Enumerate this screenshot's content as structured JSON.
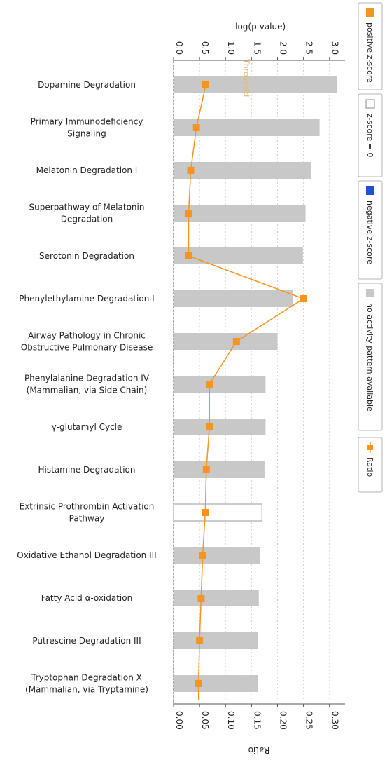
{
  "chart_data": {
    "type": "bar",
    "orientation": "horizontal",
    "top_axis": {
      "label": "-log(p-value)",
      "ticks": [
        "0.0",
        "0.5",
        "1.0",
        "1.5",
        "2.0",
        "2.5",
        "3.0"
      ],
      "range": [
        0,
        3.3
      ]
    },
    "bottom_axis": {
      "label": "Ratio",
      "ticks": [
        "0.00",
        "0.05",
        "0.10",
        "0.15",
        "0.20",
        "0.25",
        "0.30"
      ],
      "range": [
        0,
        0.33
      ]
    },
    "threshold": {
      "label": "Threshold",
      "value": 1.3
    },
    "categories": [
      [
        "Dopamine Degradation"
      ],
      [
        "Primary Immunodeficiency",
        "Signaling"
      ],
      [
        "Melatonin Degradation I"
      ],
      [
        "Superpathway of Melatonin",
        "Degradation"
      ],
      [
        "Serotonin Degradation"
      ],
      [
        "Phenylethylamine Degradation I"
      ],
      [
        "Airway Pathology in Chronic",
        "Obstructive Pulmonary Disease"
      ],
      [
        "Phenylalanine Degradation IV",
        "(Mammalian, via Side Chain)"
      ],
      [
        "γ-glutamyl Cycle"
      ],
      [
        "Histamine Degradation"
      ],
      [
        "Extrinsic Prothrombin Activation",
        "Pathway"
      ],
      [
        "Oxidative Ethanol Degradation III"
      ],
      [
        "Fatty Acid α-oxidation"
      ],
      [
        "Putrescine Degradation III"
      ],
      [
        "Tryptophan Degradation X",
        "(Mammalian, via Tryptamine)"
      ]
    ],
    "series": [
      {
        "name": "-log(p-value)",
        "values": [
          3.15,
          2.81,
          2.64,
          2.54,
          2.49,
          2.29,
          2.0,
          1.77,
          1.77,
          1.75,
          1.7,
          1.66,
          1.64,
          1.62,
          1.62
        ],
        "fill": [
          "gray",
          "gray",
          "gray",
          "gray",
          "gray",
          "gray",
          "gray",
          "gray",
          "gray",
          "gray",
          "white",
          "gray",
          "gray",
          "gray",
          "gray"
        ]
      },
      {
        "name": "Ratio",
        "values": [
          0.062,
          0.044,
          0.033,
          0.029,
          0.029,
          0.25,
          0.121,
          0.069,
          0.069,
          0.063,
          0.061,
          0.056,
          0.053,
          0.05,
          0.048
        ]
      }
    ],
    "legend": {
      "placement": "right",
      "items": [
        {
          "label": "positive z-score",
          "color": "#f7931e",
          "kind": "square"
        },
        {
          "label": "z-score = 0",
          "color": "#ffffff",
          "kind": "square"
        },
        {
          "label": "negative z-score",
          "color": "#1f4fd8",
          "kind": "square"
        },
        {
          "label": "no activity pattern available",
          "color": "#c8c8c8",
          "kind": "square"
        },
        {
          "label": "Ratio",
          "color": "#f7931e",
          "kind": "line-marker"
        }
      ]
    },
    "colors": {
      "bar_gray": "#c8c8c8",
      "ratio": "#f7931e",
      "threshold": "#f6b25a",
      "negative": "#1f4fd8",
      "grid": "#cfcfcf"
    }
  }
}
